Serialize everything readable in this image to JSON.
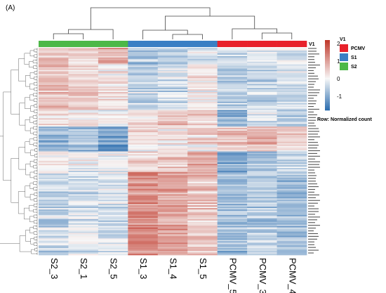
{
  "panel_label": "(A)",
  "chart_data": {
    "type": "heatmap",
    "title": "",
    "columns": [
      "S2_3",
      "S2_1",
      "S2_5",
      "S1_3",
      "S1_4",
      "S1_5",
      "PCMV_5",
      "PCMV_3",
      "PCMV_4"
    ],
    "column_groups": [
      "S2",
      "S2",
      "S2",
      "S1",
      "S1",
      "S1",
      "PCMV",
      "PCMV",
      "PCMV"
    ],
    "annotation": {
      "name": "V1",
      "levels": [
        {
          "label": "PCMV",
          "color": "#e8212b"
        },
        {
          "label": "S1",
          "color": "#3a7fc4"
        },
        {
          "label": "S2",
          "color": "#4cb847"
        }
      ]
    },
    "colorbar": {
      "ticks": [
        2,
        1,
        0,
        -1
      ],
      "range": [
        -1.8,
        2.2
      ],
      "low_color": "#2e6fb0",
      "mid_color": "#f7f7f7",
      "high_color": "#c0392b"
    },
    "row_note": "Row: Normalized count",
    "cluster_profiles": [
      {
        "fraction": 0.08,
        "values": [
          0.6,
          0.4,
          0.9,
          -0.7,
          -0.6,
          -0.3,
          -0.5,
          -0.3,
          -0.3
        ]
      },
      {
        "fraction": 0.22,
        "values": [
          0.7,
          0.5,
          0.2,
          -0.5,
          -0.4,
          0.1,
          -0.6,
          -0.5,
          -0.4
        ]
      },
      {
        "fraction": 0.08,
        "values": [
          0.3,
          0.2,
          0.1,
          0.2,
          0.7,
          0.5,
          -1.0,
          -0.3,
          -0.6
        ]
      },
      {
        "fraction": 0.12,
        "values": [
          -1.0,
          -0.8,
          -1.2,
          0.2,
          0.1,
          0.3,
          0.6,
          0.8,
          0.5
        ]
      },
      {
        "fraction": 0.1,
        "values": [
          0.0,
          -0.1,
          0.0,
          0.4,
          0.6,
          1.0,
          -1.2,
          -0.8,
          -0.6
        ]
      },
      {
        "fraction": 0.4,
        "values": [
          -0.4,
          -0.3,
          -0.3,
          1.3,
          1.0,
          0.6,
          -0.9,
          -0.6,
          -0.8
        ]
      }
    ]
  }
}
